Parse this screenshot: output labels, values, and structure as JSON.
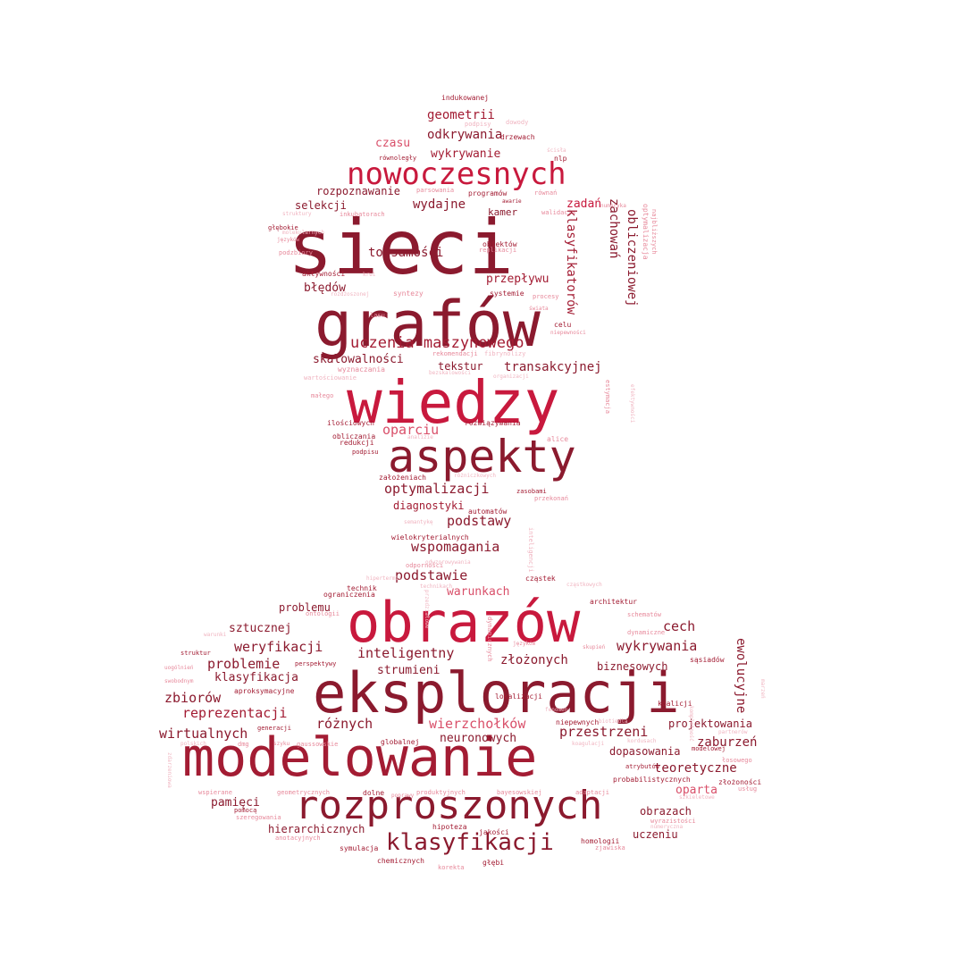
{
  "palette": {
    "dark": "#8b1a2e",
    "mid": "#a31c33",
    "red": "#c8193d",
    "pink": "#d9506a",
    "light": "#e7899b",
    "pale": "#f0b4c0"
  },
  "cloud": {
    "words": [
      {
        "text": "sieci",
        "color": "dark"
      },
      {
        "text": "grafów",
        "color": "dark"
      },
      {
        "text": "wiedzy",
        "color": "red"
      },
      {
        "text": "aspekty",
        "color": "dark"
      },
      {
        "text": "nowoczesnych",
        "color": "red"
      },
      {
        "text": "obrazów",
        "color": "red"
      },
      {
        "text": "eksploracji",
        "color": "dark"
      },
      {
        "text": "modelowanie",
        "color": "mid"
      },
      {
        "text": "rozproszonych",
        "color": "dark"
      },
      {
        "text": "klasyfikacji",
        "color": "dark"
      },
      {
        "text": "uczenia maszynowego",
        "color": "mid"
      },
      {
        "text": "optymalizacji",
        "color": "dark"
      },
      {
        "text": "geometrii",
        "color": "mid"
      },
      {
        "text": "odkrywania",
        "color": "dark"
      },
      {
        "text": "wykrywanie",
        "color": "mid"
      },
      {
        "text": "czasu",
        "color": "pink"
      },
      {
        "text": "rozpoznawanie",
        "color": "dark"
      },
      {
        "text": "selekcji",
        "color": "dark"
      },
      {
        "text": "wydajne",
        "color": "dark"
      },
      {
        "text": "zadań",
        "color": "red"
      },
      {
        "text": "kamer",
        "color": "dark"
      },
      {
        "text": "tożsamości",
        "color": "dark"
      },
      {
        "text": "przepływu",
        "color": "mid"
      },
      {
        "text": "błędów",
        "color": "dark"
      },
      {
        "text": "skalowalności",
        "color": "dark"
      },
      {
        "text": "tekstur",
        "color": "dark"
      },
      {
        "text": "transakcyjnej",
        "color": "dark"
      },
      {
        "text": "oparciu",
        "color": "pink"
      },
      {
        "text": "diagnostyki",
        "color": "mid"
      },
      {
        "text": "podstawy",
        "color": "dark"
      },
      {
        "text": "wspomagania",
        "color": "dark"
      },
      {
        "text": "podstawie",
        "color": "dark"
      },
      {
        "text": "warunkach",
        "color": "pink"
      },
      {
        "text": "problemu",
        "color": "dark"
      },
      {
        "text": "sztucznej",
        "color": "dark"
      },
      {
        "text": "weryfikacji",
        "color": "dark"
      },
      {
        "text": "inteligentny",
        "color": "dark"
      },
      {
        "text": "złożonych",
        "color": "dark"
      },
      {
        "text": "problemie",
        "color": "dark"
      },
      {
        "text": "klasyfikacja",
        "color": "dark"
      },
      {
        "text": "strumieni",
        "color": "dark"
      },
      {
        "text": "zbiorów",
        "color": "dark"
      },
      {
        "text": "reprezentacji",
        "color": "mid"
      },
      {
        "text": "różnych",
        "color": "dark"
      },
      {
        "text": "wierzchołków",
        "color": "pink"
      },
      {
        "text": "przestrzeni",
        "color": "dark"
      },
      {
        "text": "wirtualnych",
        "color": "dark"
      },
      {
        "text": "neuronowych",
        "color": "dark"
      },
      {
        "text": "cech",
        "color": "dark"
      },
      {
        "text": "wykrywania",
        "color": "dark"
      },
      {
        "text": "biznesowych",
        "color": "dark"
      },
      {
        "text": "projektowania",
        "color": "dark"
      },
      {
        "text": "zaburzeń",
        "color": "dark"
      },
      {
        "text": "dopasowania",
        "color": "dark"
      },
      {
        "text": "teoretyczne",
        "color": "dark"
      },
      {
        "text": "oparta",
        "color": "pink"
      },
      {
        "text": "pamięci",
        "color": "dark"
      },
      {
        "text": "hierarchicznych",
        "color": "dark"
      },
      {
        "text": "obrazach",
        "color": "dark"
      },
      {
        "text": "uczeniu",
        "color": "dark"
      },
      {
        "text": "indukowanej",
        "color": "mid"
      },
      {
        "text": "podpisy",
        "color": "pale"
      },
      {
        "text": "dowody",
        "color": "pale"
      },
      {
        "text": "drzewach",
        "color": "mid"
      },
      {
        "text": "równoległy",
        "color": "mid"
      },
      {
        "text": "nlp",
        "color": "mid"
      },
      {
        "text": "ścisła",
        "color": "pale"
      },
      {
        "text": "parsowania",
        "color": "light"
      },
      {
        "text": "programów",
        "color": "mid"
      },
      {
        "text": "równań",
        "color": "light"
      },
      {
        "text": "numeryka",
        "color": "light"
      },
      {
        "text": "struktury",
        "color": "pale"
      },
      {
        "text": "inkubatorach",
        "color": "light"
      },
      {
        "text": "awarie",
        "color": "mid"
      },
      {
        "text": "walidacja",
        "color": "light"
      },
      {
        "text": "głębokie",
        "color": "mid"
      },
      {
        "text": "molekularnych",
        "color": "pale"
      },
      {
        "text": "języków",
        "color": "light"
      },
      {
        "text": "podzbiory",
        "color": "light"
      },
      {
        "text": "obiektów",
        "color": "mid"
      },
      {
        "text": "replikacji",
        "color": "light"
      },
      {
        "text": "aktywności",
        "color": "mid"
      },
      {
        "text": "krwi",
        "color": "pale"
      },
      {
        "text": "systemie",
        "color": "mid"
      },
      {
        "text": "procesy",
        "color": "light"
      },
      {
        "text": "syntezy",
        "color": "light"
      },
      {
        "text": "różdżoszonej",
        "color": "pale"
      },
      {
        "text": "świata",
        "color": "light"
      },
      {
        "text": "lasu",
        "color": "light"
      },
      {
        "text": "celu",
        "color": "mid"
      },
      {
        "text": "niepewności",
        "color": "light"
      },
      {
        "text": "rekomendacji",
        "color": "light"
      },
      {
        "text": "fibrynolizy",
        "color": "pale"
      },
      {
        "text": "wyznaczania",
        "color": "light"
      },
      {
        "text": "bezskalowości",
        "color": "pale"
      },
      {
        "text": "organizacji",
        "color": "pale"
      },
      {
        "text": "wartościowanie",
        "color": "pale"
      },
      {
        "text": "małego",
        "color": "light"
      },
      {
        "text": "rozwiązywania",
        "color": "mid"
      },
      {
        "text": "ilościowych",
        "color": "mid"
      },
      {
        "text": "obliczania",
        "color": "mid"
      },
      {
        "text": "analizie",
        "color": "pale"
      },
      {
        "text": "alice",
        "color": "light"
      },
      {
        "text": "redukcji",
        "color": "mid"
      },
      {
        "text": "podpisu",
        "color": "mid"
      },
      {
        "text": "założeniach",
        "color": "mid"
      },
      {
        "text": "różniczkowych",
        "color": "pale"
      },
      {
        "text": "zasobami",
        "color": "mid"
      },
      {
        "text": "przekonań",
        "color": "light"
      },
      {
        "text": "automatów",
        "color": "mid"
      },
      {
        "text": "semantykę",
        "color": "pale"
      },
      {
        "text": "wielokryterialnych",
        "color": "mid"
      },
      {
        "text": "odwzorowywania",
        "color": "pale"
      },
      {
        "text": "odporności",
        "color": "light"
      },
      {
        "text": "hipertermii",
        "color": "pale"
      },
      {
        "text": "technikach",
        "color": "pale"
      },
      {
        "text": "cząstek",
        "color": "mid"
      },
      {
        "text": "cząstkowych",
        "color": "pale"
      },
      {
        "text": "technik",
        "color": "mid"
      },
      {
        "text": "ograniczenia",
        "color": "mid"
      },
      {
        "text": "ontologii",
        "color": "light"
      },
      {
        "text": "architektur",
        "color": "mid"
      },
      {
        "text": "schematów",
        "color": "light"
      },
      {
        "text": "dynamiczne",
        "color": "light"
      },
      {
        "text": "warunki",
        "color": "pale"
      },
      {
        "text": "struktur",
        "color": "mid"
      },
      {
        "text": "języków",
        "color": "light"
      },
      {
        "text": "skupień",
        "color": "light"
      },
      {
        "text": "perspektywy",
        "color": "mid"
      },
      {
        "text": "uogólnień",
        "color": "light"
      },
      {
        "text": "swobodnym",
        "color": "light"
      },
      {
        "text": "aproksymacyjne",
        "color": "mid"
      },
      {
        "text": "lokalizacji",
        "color": "mid"
      },
      {
        "text": "fenomen",
        "color": "pale"
      },
      {
        "text": "sąsiadów",
        "color": "mid"
      },
      {
        "text": "koalicji",
        "color": "mid"
      },
      {
        "text": "niepewnych",
        "color": "mid"
      },
      {
        "text": "biotiedla",
        "color": "pale"
      },
      {
        "text": "generacji",
        "color": "mid"
      },
      {
        "text": "dmg",
        "color": "light"
      },
      {
        "text": "gaussowskie",
        "color": "light"
      },
      {
        "text": "szyku",
        "color": "light"
      },
      {
        "text": "polskich",
        "color": "pale"
      },
      {
        "text": "globalnej",
        "color": "mid"
      },
      {
        "text": "koagulacji",
        "color": "pale"
      },
      {
        "text": "kordusach",
        "color": "pale"
      },
      {
        "text": "partnerów",
        "color": "pale"
      },
      {
        "text": "modelowej",
        "color": "mid"
      },
      {
        "text": "łosowego",
        "color": "light"
      },
      {
        "text": "atrybutów",
        "color": "mid"
      },
      {
        "text": "probabilistycznych",
        "color": "mid"
      },
      {
        "text": "złożoności",
        "color": "mid"
      },
      {
        "text": "usług",
        "color": "light"
      },
      {
        "text": "wspierane",
        "color": "light"
      },
      {
        "text": "geometrycznych",
        "color": "light"
      },
      {
        "text": "dolne",
        "color": "mid"
      },
      {
        "text": "produktyjnych",
        "color": "light"
      },
      {
        "text": "bayesowskiej",
        "color": "light"
      },
      {
        "text": "adaptacji",
        "color": "light"
      },
      {
        "text": "szkieletowe",
        "color": "pale"
      },
      {
        "text": "pomocą",
        "color": "mid"
      },
      {
        "text": "szeregowania",
        "color": "light"
      },
      {
        "text": "wyrazistości",
        "color": "light"
      },
      {
        "text": "hipoteza",
        "color": "mid"
      },
      {
        "text": "jakości",
        "color": "mid"
      },
      {
        "text": "numeryczna",
        "color": "pale"
      },
      {
        "text": "homologii",
        "color": "mid"
      },
      {
        "text": "anotacyjnych",
        "color": "light"
      },
      {
        "text": "symulacja",
        "color": "mid"
      },
      {
        "text": "zjawiska",
        "color": "light"
      },
      {
        "text": "chemicznych",
        "color": "mid"
      },
      {
        "text": "korekta",
        "color": "light"
      },
      {
        "text": "głębi",
        "color": "mid"
      },
      {
        "text": "poprawy",
        "color": "light"
      },
      {
        "text": "klasyfikatorów",
        "color": "mid"
      },
      {
        "text": "zachowań",
        "color": "dark"
      },
      {
        "text": "obliczeniowej",
        "color": "dark"
      },
      {
        "text": "ewolucyjne",
        "color": "dark"
      },
      {
        "text": "optymalizacja",
        "color": "light"
      },
      {
        "text": "najbliższych",
        "color": "light"
      },
      {
        "text": "estymacja",
        "color": "light"
      },
      {
        "text": "efektywności",
        "color": "pale"
      },
      {
        "text": "inteligencji",
        "color": "pale"
      },
      {
        "text": "dynamicznych",
        "color": "light"
      },
      {
        "text": "przedziałowe",
        "color": "pale"
      },
      {
        "text": "kompletność",
        "color": "pale"
      },
      {
        "text": "zdarzeniowa",
        "color": "pale"
      },
      {
        "text": "marzeń",
        "color": "pale"
      }
    ]
  }
}
